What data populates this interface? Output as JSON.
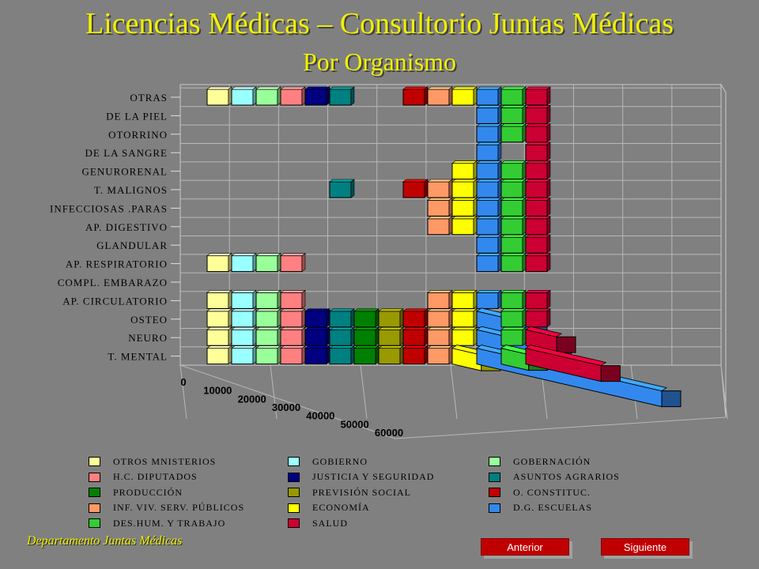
{
  "header": {
    "title": "Licencias Médicas – Consultorio Juntas Médicas",
    "subtitle": "Por  Organismo"
  },
  "footer": {
    "department": "Departamento Juntas Médicas",
    "prev_label": "Anterior",
    "next_label": "Siguiente"
  },
  "chart_data": {
    "type": "bar",
    "orientation": "horizontal-3d",
    "categories": [
      "T. MENTAL",
      "NEURO",
      "OSTEO",
      "AP. CIRCULATORIO",
      "COMPL. EMBARAZO",
      "AP. RESPIRATORIO",
      "GLANDULAR",
      "AP. DIGESTIVO",
      "INFECCIOSAS .PARAS",
      "T. MALIGNOS",
      "GENURORENAL",
      "DE LA SANGRE",
      "OTORRINO",
      "DE LA PIEL",
      "OTRAS"
    ],
    "x_ticks": [
      0,
      10000,
      20000,
      30000,
      40000,
      50000,
      60000
    ],
    "xlim": [
      0,
      60000
    ],
    "legend_position": "bottom",
    "series": [
      {
        "name": "OTROS MNISTERIOS",
        "color": "#ffff99",
        "values": [
          1200,
          1000,
          500,
          400,
          0,
          300,
          0,
          0,
          0,
          0,
          0,
          0,
          0,
          0,
          300
        ]
      },
      {
        "name": "GOBIERNO",
        "color": "#99ffff",
        "values": [
          800,
          200,
          100,
          100,
          0,
          50,
          0,
          0,
          0,
          0,
          0,
          0,
          0,
          0,
          50
        ]
      },
      {
        "name": "GOBERNACIÓN",
        "color": "#99ff99",
        "values": [
          1200,
          300,
          200,
          100,
          0,
          100,
          0,
          0,
          0,
          0,
          0,
          0,
          0,
          0,
          100
        ]
      },
      {
        "name": "H.C. DIPUTADOS",
        "color": "#ff8080",
        "values": [
          600,
          300,
          200,
          100,
          0,
          50,
          0,
          0,
          0,
          0,
          0,
          0,
          0,
          0,
          50
        ]
      },
      {
        "name": "JUSTICIA Y SEGURIDAD",
        "color": "#000080",
        "values": [
          1500,
          600,
          400,
          0,
          0,
          0,
          0,
          0,
          0,
          0,
          0,
          0,
          0,
          0,
          200
        ]
      },
      {
        "name": "ASUNTOS AGRARIOS",
        "color": "#008080",
        "values": [
          700,
          400,
          300,
          0,
          0,
          0,
          0,
          0,
          0,
          200,
          0,
          0,
          0,
          0,
          200
        ]
      },
      {
        "name": "PRODUCCIÓN",
        "color": "#008000",
        "values": [
          1400,
          500,
          300,
          0,
          0,
          0,
          0,
          0,
          0,
          0,
          0,
          0,
          0,
          0,
          0
        ]
      },
      {
        "name": "PREVISIÓN SOCIAL",
        "color": "#999900",
        "values": [
          1300,
          300,
          200,
          0,
          0,
          0,
          0,
          0,
          0,
          0,
          0,
          0,
          0,
          0,
          0
        ]
      },
      {
        "name": "O. CONSTITUC.",
        "color": "#c00000",
        "values": [
          2000,
          700,
          500,
          0,
          0,
          0,
          0,
          0,
          0,
          300,
          0,
          0,
          0,
          0,
          300
        ]
      },
      {
        "name": "INF. VIV. SERV. PÚBLICOS",
        "color": "#ff9966",
        "values": [
          1500,
          700,
          500,
          300,
          0,
          0,
          0,
          150,
          200,
          300,
          0,
          0,
          0,
          0,
          300
        ]
      },
      {
        "name": "ECONOMÍA",
        "color": "#ffff00",
        "values": [
          8500,
          3000,
          1800,
          400,
          0,
          0,
          0,
          300,
          300,
          500,
          300,
          0,
          0,
          0,
          300
        ]
      },
      {
        "name": "D.G. ESCUELAS",
        "color": "#3388ee",
        "values": [
          54000,
          22000,
          15000,
          4000,
          0,
          800,
          600,
          800,
          900,
          4500,
          800,
          500,
          600,
          700,
          4000
        ]
      },
      {
        "name": "DES.HUM. Y TRABAJO",
        "color": "#33cc33",
        "values": [
          8000,
          4000,
          3000,
          1500,
          0,
          500,
          400,
          400,
          500,
          1500,
          500,
          0,
          300,
          400,
          1200
        ]
      },
      {
        "name": "SALUD",
        "color": "#cc0033",
        "values": [
          22000,
          9000,
          6000,
          2500,
          0,
          700,
          600,
          700,
          800,
          2500,
          800,
          500,
          600,
          700,
          2000
        ]
      }
    ]
  }
}
